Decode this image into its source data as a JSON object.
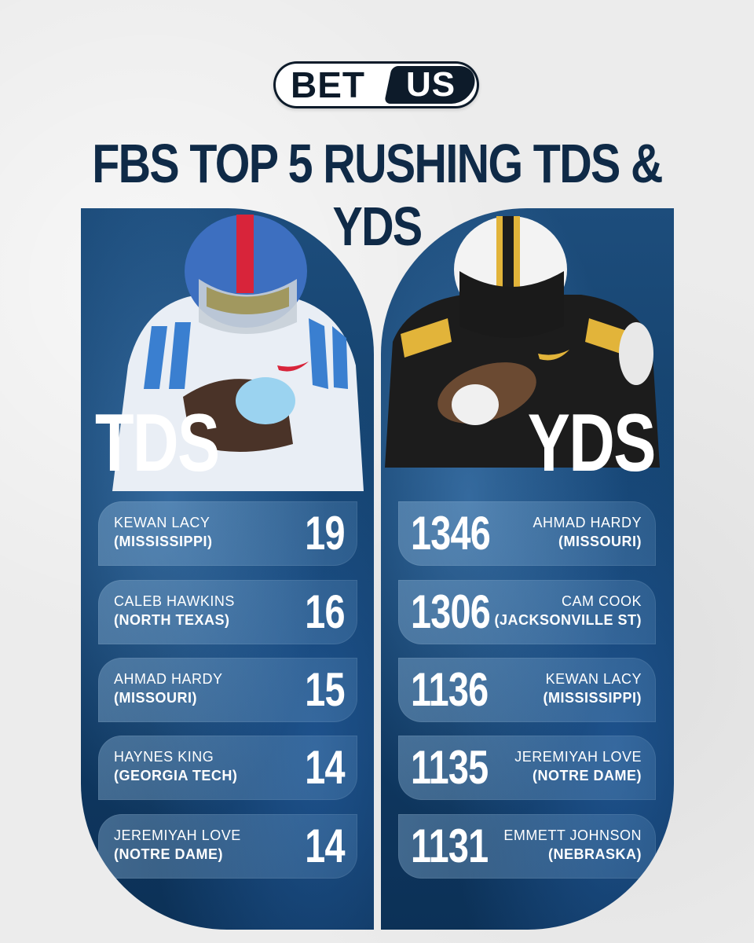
{
  "logo": {
    "part1": "BET",
    "part2": "US"
  },
  "title": "FBS TOP 5 RUSHING TDS & YDS",
  "colors": {
    "navy": "#0f2a47",
    "panel": "#13406b",
    "text": "#ffffff",
    "background": "#ececec"
  },
  "tds": {
    "label": "TDS",
    "rows": [
      {
        "name": "KEWAN LACY",
        "school": "(MISSISSIPPI)",
        "value": "19"
      },
      {
        "name": "CALEB HAWKINS",
        "school": "(NORTH TEXAS)",
        "value": "16"
      },
      {
        "name": "AHMAD HARDY",
        "school": "(MISSOURI)",
        "value": "15"
      },
      {
        "name": "HAYNES KING",
        "school": "(GEORGIA TECH)",
        "value": "14"
      },
      {
        "name": "JEREMIYAH LOVE",
        "school": "(NOTRE DAME)",
        "value": "14"
      }
    ]
  },
  "yds": {
    "label": "YDS",
    "rows": [
      {
        "name": "AHMAD HARDY",
        "school": "(MISSOURI)",
        "value": "1346"
      },
      {
        "name": "CAM COOK",
        "school": "(JACKSONVILLE ST)",
        "value": "1306"
      },
      {
        "name": "KEWAN LACY",
        "school": "(MISSISSIPPI)",
        "value": "1136"
      },
      {
        "name": "JEREMIYAH LOVE",
        "school": "(NOTRE DAME)",
        "value": "1135"
      },
      {
        "name": "EMMETT JOHNSON",
        "school": "(NEBRASKA)",
        "value": "1131"
      }
    ]
  }
}
